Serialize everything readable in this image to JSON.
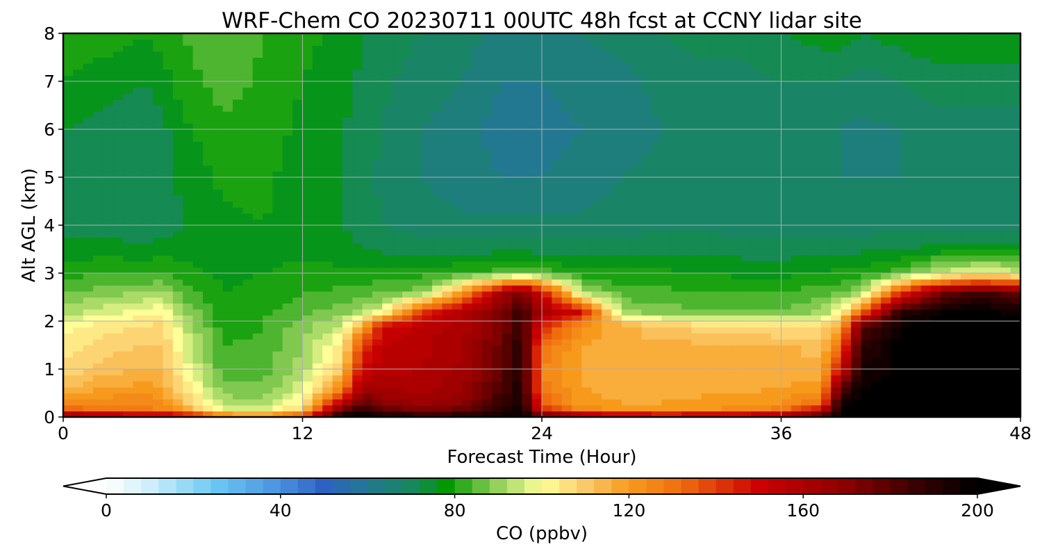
{
  "chart_data": {
    "type": "heatmap",
    "title": "WRF-Chem CO  20230711 00UTC 48h fcst at CCNY lidar site",
    "xlabel": "Forecast Time (Hour)",
    "ylabel": "Alt AGL (km)",
    "xlim": [
      0,
      48
    ],
    "ylim": [
      0,
      8
    ],
    "xticks": [
      "0",
      "12",
      "24",
      "36",
      "48"
    ],
    "yticks": [
      "0",
      "1",
      "2",
      "3",
      "4",
      "5",
      "6",
      "7",
      "8"
    ],
    "grid": true,
    "x_hours": [
      0,
      2,
      4,
      5,
      6,
      8,
      10,
      12,
      14,
      15,
      16,
      18,
      20,
      22,
      23,
      24,
      26,
      28,
      30,
      32,
      34,
      36,
      38,
      39,
      40,
      42,
      44,
      46,
      48
    ],
    "y_km": [
      0,
      0.1,
      0.3,
      0.6,
      1.0,
      1.5,
      1.9,
      2.2,
      2.6,
      3.0,
      3.5,
      4.0,
      5.0,
      6.0,
      7.0,
      8.0
    ],
    "co_ppbv": [
      [
        190,
        140,
        122,
        113,
        107,
        103,
        100,
        92,
        86,
        80,
        76,
        72,
        72,
        74,
        78,
        80
      ],
      [
        185,
        130,
        125,
        118,
        112,
        108,
        104,
        96,
        88,
        82,
        76,
        72,
        70,
        72,
        76,
        80
      ],
      [
        185,
        128,
        126,
        120,
        114,
        110,
        106,
        100,
        90,
        82,
        75,
        71,
        70,
        70,
        74,
        78
      ],
      [
        185,
        127,
        123,
        118,
        113,
        110,
        108,
        102,
        92,
        82,
        76,
        72,
        72,
        73,
        76,
        80
      ],
      [
        180,
        122,
        112,
        106,
        101,
        98,
        95,
        90,
        85,
        80,
        76,
        74,
        75,
        77,
        80,
        82
      ],
      [
        150,
        100,
        92,
        88,
        84,
        82,
        80,
        79,
        78,
        77,
        76,
        77,
        79,
        81,
        84,
        86
      ],
      [
        140,
        100,
        92,
        87,
        84,
        83,
        82,
        81,
        79,
        78,
        77,
        78,
        79,
        80,
        81,
        82
      ],
      [
        160,
        110,
        103,
        96,
        92,
        90,
        88,
        85,
        82,
        79,
        77,
        76,
        76,
        77,
        78,
        79
      ],
      [
        200,
        185,
        155,
        125,
        110,
        104,
        95,
        88,
        83,
        79,
        76,
        74,
        74,
        74,
        76,
        77
      ],
      [
        200,
        195,
        180,
        165,
        150,
        140,
        118,
        92,
        84,
        79,
        74,
        72,
        72,
        72,
        73,
        74
      ],
      [
        200,
        185,
        170,
        162,
        156,
        154,
        148,
        98,
        86,
        80,
        73,
        70,
        69,
        70,
        71,
        72
      ],
      [
        200,
        175,
        165,
        160,
        158,
        157,
        156,
        140,
        88,
        80,
        72,
        68,
        66,
        66,
        68,
        70
      ],
      [
        200,
        178,
        170,
        165,
        163,
        161,
        160,
        158,
        120,
        82,
        72,
        67,
        64,
        64,
        66,
        68
      ],
      [
        200,
        192,
        186,
        182,
        178,
        176,
        174,
        172,
        162,
        84,
        73,
        67,
        62,
        60,
        62,
        64
      ],
      [
        200,
        198,
        196,
        194,
        192,
        190,
        188,
        186,
        175,
        86,
        73,
        67,
        62,
        58,
        62,
        64
      ],
      [
        200,
        150,
        135,
        128,
        126,
        130,
        145,
        162,
        150,
        84,
        72,
        67,
        62,
        60,
        62,
        64
      ],
      [
        200,
        126,
        120,
        118,
        117,
        118,
        122,
        150,
        94,
        80,
        72,
        67,
        64,
        62,
        64,
        66
      ],
      [
        190,
        122,
        118,
        116,
        115,
        116,
        116,
        90,
        84,
        79,
        72,
        68,
        66,
        64,
        65,
        67
      ],
      [
        185,
        122,
        118,
        116,
        115,
        115,
        110,
        88,
        83,
        79,
        73,
        69,
        67,
        66,
        67,
        70
      ],
      [
        185,
        123,
        119,
        117,
        116,
        115,
        108,
        87,
        82,
        78,
        73,
        69,
        67,
        66,
        68,
        72
      ],
      [
        190,
        125,
        120,
        117,
        116,
        115,
        106,
        87,
        82,
        77,
        72,
        68,
        66,
        66,
        68,
        72
      ],
      [
        192,
        130,
        122,
        118,
        116,
        115,
        104,
        87,
        82,
        77,
        72,
        68,
        66,
        66,
        70,
        74
      ],
      [
        195,
        160,
        130,
        120,
        115,
        112,
        106,
        90,
        84,
        78,
        72,
        68,
        66,
        66,
        70,
        76
      ],
      [
        200,
        200,
        195,
        180,
        150,
        130,
        118,
        100,
        86,
        79,
        73,
        68,
        66,
        66,
        70,
        76
      ],
      [
        200,
        200,
        200,
        198,
        194,
        188,
        178,
        130,
        90,
        80,
        73,
        68,
        66,
        65,
        68,
        74
      ],
      [
        200,
        200,
        200,
        200,
        200,
        200,
        198,
        190,
        140,
        84,
        74,
        68,
        66,
        66,
        70,
        76
      ],
      [
        200,
        200,
        200,
        200,
        200,
        200,
        200,
        198,
        175,
        95,
        76,
        68,
        66,
        68,
        72,
        78
      ],
      [
        200,
        200,
        200,
        200,
        200,
        200,
        200,
        200,
        185,
        100,
        76,
        68,
        66,
        68,
        72,
        78
      ],
      [
        200,
        200,
        200,
        200,
        200,
        200,
        200,
        196,
        176,
        96,
        76,
        68,
        66,
        68,
        72,
        78
      ]
    ],
    "colorbar": {
      "label": "CO  (ppbv)",
      "min": 0,
      "max": 200,
      "ticks": [
        "0",
        "40",
        "80",
        "120",
        "160",
        "200"
      ],
      "extend": "both",
      "colormap": [
        {
          "v": 0,
          "c": "#ffffff"
        },
        {
          "v": 10,
          "c": "#cdeefa"
        },
        {
          "v": 25,
          "c": "#6ac8f3"
        },
        {
          "v": 40,
          "c": "#4a8fde"
        },
        {
          "v": 50,
          "c": "#2e62c2"
        },
        {
          "v": 60,
          "c": "#237891"
        },
        {
          "v": 72,
          "c": "#158a52"
        },
        {
          "v": 78,
          "c": "#009900"
        },
        {
          "v": 88,
          "c": "#80c850"
        },
        {
          "v": 100,
          "c": "#ffff99"
        },
        {
          "v": 110,
          "c": "#fbc96a"
        },
        {
          "v": 120,
          "c": "#f79a1c"
        },
        {
          "v": 132,
          "c": "#ef6d0f"
        },
        {
          "v": 150,
          "c": "#cc0000"
        },
        {
          "v": 170,
          "c": "#8b0000"
        },
        {
          "v": 185,
          "c": "#3c0000"
        },
        {
          "v": 200,
          "c": "#000000"
        }
      ]
    }
  }
}
